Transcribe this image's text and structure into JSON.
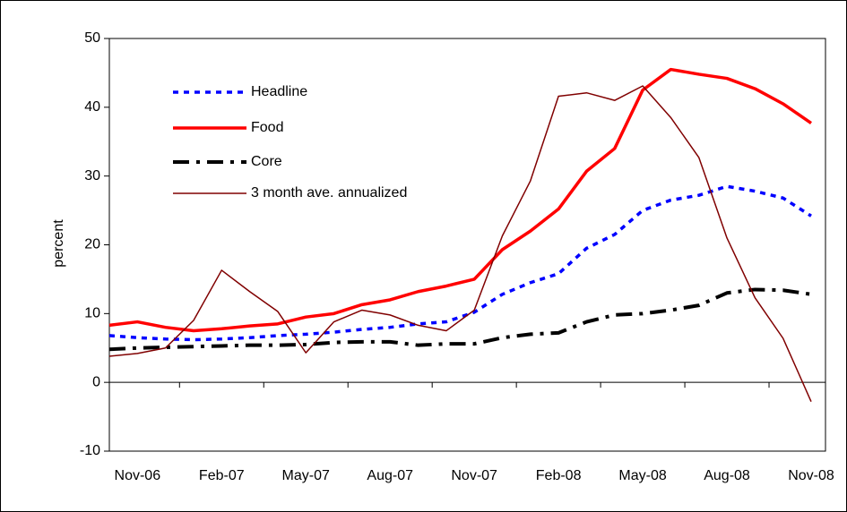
{
  "chart_data": {
    "type": "line",
    "y_label": "percent",
    "categories": [
      null,
      "Nov-06",
      null,
      null,
      "Feb-07",
      null,
      null,
      "May-07",
      null,
      null,
      "Aug-07",
      null,
      null,
      "Nov-07",
      null,
      null,
      "Feb-08",
      null,
      null,
      "May-08",
      null,
      null,
      "Aug-08",
      null,
      null,
      "Nov-08"
    ],
    "series": [
      {
        "name": "Headline",
        "color": "#0000ff",
        "style": "dotted",
        "values": [
          6.8,
          6.5,
          6.3,
          6.2,
          6.3,
          6.5,
          6.8,
          7.0,
          7.3,
          7.7,
          8.0,
          8.5,
          8.8,
          10.2,
          12.8,
          14.5,
          15.8,
          19.5,
          21.5,
          25,
          26.5,
          27.2,
          28.5,
          27.8,
          26.8,
          24.2
        ]
      },
      {
        "name": "Food",
        "color": "#ff0000",
        "style": "solid-thick",
        "values": [
          8.3,
          8.8,
          8.0,
          7.5,
          7.8,
          8.2,
          8.5,
          9.5,
          10,
          11.3,
          12,
          13.2,
          14,
          15,
          19.3,
          22,
          25.2,
          30.7,
          34,
          42.5,
          45.5,
          44.8,
          44.2,
          42.7,
          40.5,
          37.7
        ]
      },
      {
        "name": "Core",
        "color": "#000000",
        "style": "dashed",
        "values": [
          4.8,
          5.0,
          5.1,
          5.2,
          5.3,
          5.4,
          5.4,
          5.5,
          5.8,
          5.9,
          5.9,
          5.4,
          5.6,
          5.6,
          6.5,
          7.0,
          7.2,
          8.8,
          9.8,
          10,
          10.5,
          11.2,
          13,
          13.5,
          13.4,
          12.8
        ]
      },
      {
        "name": "3 month ave. annualized",
        "color": "#800000",
        "style": "solid-thin",
        "values": [
          3.8,
          4.2,
          5,
          9,
          16.3,
          13.2,
          10.3,
          4.3,
          8.8,
          10.5,
          9.8,
          8.3,
          7.5,
          10.5,
          21.3,
          29.3,
          41.6,
          42.1,
          41,
          43.1,
          38.5,
          32.7,
          21,
          12.3,
          6.4,
          -2.8
        ]
      }
    ],
    "ylim": [
      -10,
      50
    ],
    "yticks": [
      -10,
      0,
      10,
      20,
      30,
      40,
      50
    ],
    "legend": "upper-left"
  }
}
